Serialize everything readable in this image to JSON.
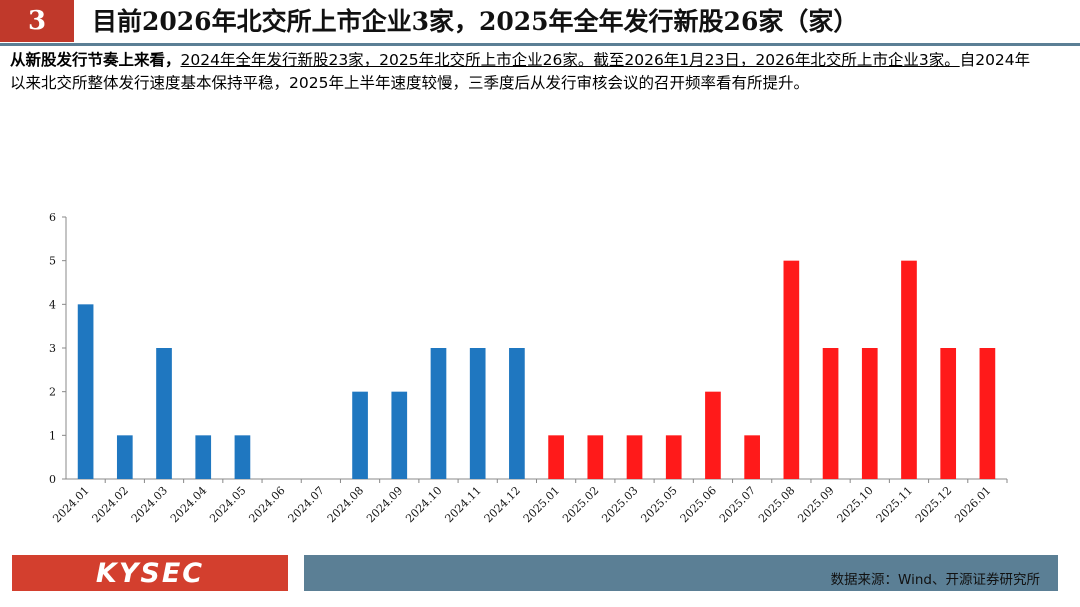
{
  "header": {
    "slide_number": "3",
    "title": "目前2026年北交所上市企业3家，2025年全年发行新股26家（家）"
  },
  "description": {
    "lead": "从新股发行节奏上来看，",
    "underlined": "2024年全年发行新股23家，2025年北交所上市企业26家。截至2026年1月23日，2026年北交所上市企业3家。",
    "rest": "自2024年以来北交所整体发行速度基本保持平稳，2025年上半年速度较慢，三季度后从发行审核会议的召开频率看有所提升。"
  },
  "footer": {
    "logo_text": "KYSEC",
    "source": "数据来源：Wind、开源证券研究所"
  },
  "colors": {
    "blue": "#1f77c0",
    "red": "#ff1a1a",
    "accent": "#d33f2e",
    "rule": "#5b7f95"
  },
  "chart_data": {
    "type": "bar",
    "ylim": [
      0,
      6
    ],
    "yticks": [
      0,
      1,
      2,
      3,
      4,
      5,
      6
    ],
    "categories": [
      "2024.01",
      "2024.02",
      "2024.03",
      "2024.04",
      "2024.05",
      "2024.06",
      "2024.07",
      "2024.08",
      "2024.09",
      "2024.10",
      "2024.11",
      "2024.12",
      "2025.01",
      "2025.02",
      "2025.03",
      "2025.05",
      "2025.06",
      "2025.07",
      "2025.08",
      "2025.09",
      "2025.10",
      "2025.11",
      "2025.12",
      "2026.01"
    ],
    "values": [
      4,
      1,
      3,
      1,
      1,
      0,
      0,
      2,
      2,
      3,
      3,
      3,
      1,
      1,
      1,
      1,
      2,
      1,
      5,
      3,
      3,
      5,
      3,
      3
    ],
    "bar_colors": [
      "blue",
      "blue",
      "blue",
      "blue",
      "blue",
      "blue",
      "blue",
      "blue",
      "blue",
      "blue",
      "blue",
      "blue",
      "red",
      "red",
      "red",
      "red",
      "red",
      "red",
      "red",
      "red",
      "red",
      "red",
      "red",
      "red"
    ],
    "grid": false,
    "legend": "none"
  }
}
